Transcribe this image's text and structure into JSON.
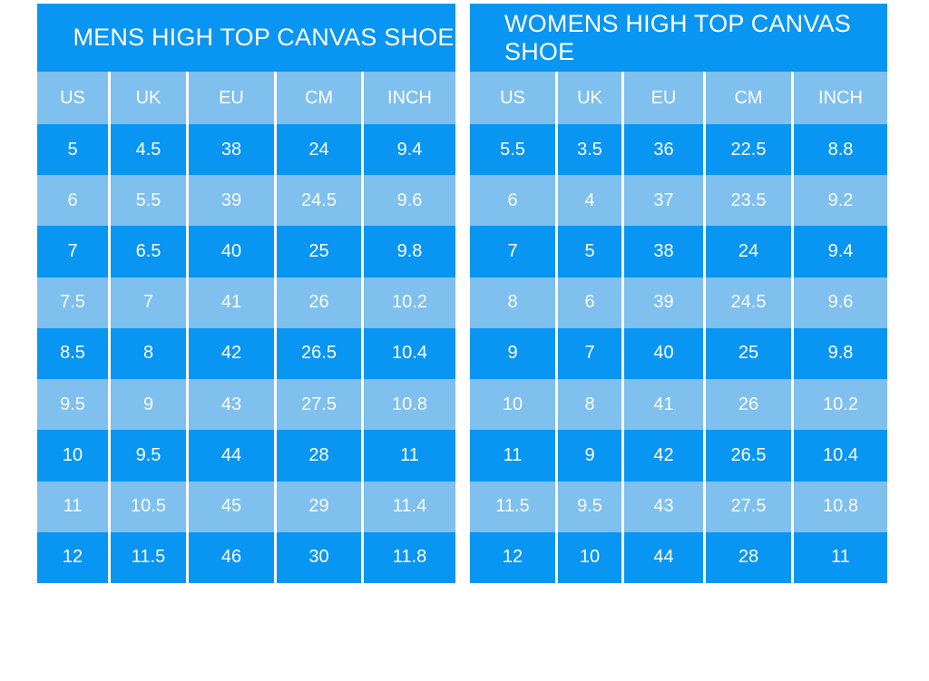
{
  "colors": {
    "row_dark": "#0995f2",
    "row_light": "#7fc0ef",
    "text": "#ffffff",
    "background": "#ffffff"
  },
  "chart_data": [
    {
      "type": "table",
      "title": "MENS HIGH TOP CANVAS SHOE",
      "columns": [
        "US",
        "UK",
        "EU",
        "CM",
        "INCH"
      ],
      "rows": [
        [
          "5",
          "4.5",
          "38",
          "24",
          "9.4"
        ],
        [
          "6",
          "5.5",
          "39",
          "24.5",
          "9.6"
        ],
        [
          "7",
          "6.5",
          "40",
          "25",
          "9.8"
        ],
        [
          "7.5",
          "7",
          "41",
          "26",
          "10.2"
        ],
        [
          "8.5",
          "8",
          "42",
          "26.5",
          "10.4"
        ],
        [
          "9.5",
          "9",
          "43",
          "27.5",
          "10.8"
        ],
        [
          "10",
          "9.5",
          "44",
          "28",
          "11"
        ],
        [
          "11",
          "10.5",
          "45",
          "29",
          "11.4"
        ],
        [
          "12",
          "11.5",
          "46",
          "30",
          "11.8"
        ]
      ],
      "layout": {
        "row_shading": "alternating starting dark",
        "dividers": "white vertical lines between columns"
      }
    },
    {
      "type": "table",
      "title": "WOMENS HIGH TOP CANVAS SHOE",
      "columns": [
        "US",
        "UK",
        "EU",
        "CM",
        "INCH"
      ],
      "rows": [
        [
          "5.5",
          "3.5",
          "36",
          "22.5",
          "8.8"
        ],
        [
          "6",
          "4",
          "37",
          "23.5",
          "9.2"
        ],
        [
          "7",
          "5",
          "38",
          "24",
          "9.4"
        ],
        [
          "8",
          "6",
          "39",
          "24.5",
          "9.6"
        ],
        [
          "9",
          "7",
          "40",
          "25",
          "9.8"
        ],
        [
          "10",
          "8",
          "41",
          "26",
          "10.2"
        ],
        [
          "11",
          "9",
          "42",
          "26.5",
          "10.4"
        ],
        [
          "11.5",
          "9.5",
          "43",
          "27.5",
          "10.8"
        ],
        [
          "12",
          "10",
          "44",
          "28",
          "11"
        ]
      ],
      "layout": {
        "row_shading": "alternating starting dark",
        "dividers": "white vertical lines between columns"
      }
    }
  ]
}
